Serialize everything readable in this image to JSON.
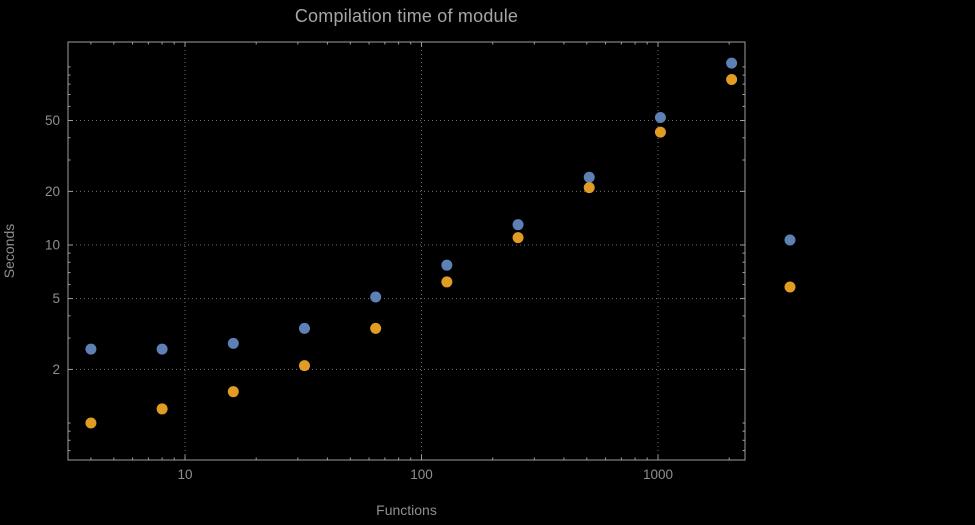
{
  "chart": {
    "title": "Compilation time of module",
    "xlabel": "Functions",
    "ylabel": "Seconds"
  },
  "chart_data": {
    "type": "scatter",
    "title": "Compilation time of module",
    "xlabel": "Functions",
    "ylabel": "Seconds",
    "x_scale": "log",
    "y_scale": "log",
    "grid": true,
    "x": [
      4,
      8,
      16,
      32,
      64,
      128,
      256,
      512,
      1024,
      2048
    ],
    "series": [
      {
        "name": "series-blue",
        "color": "#5e81b5",
        "values": [
          2.6,
          2.6,
          2.8,
          3.4,
          5.1,
          7.7,
          13,
          24,
          52,
          105
        ]
      },
      {
        "name": "series-orange",
        "color": "#e19c24",
        "values": [
          1.0,
          1.2,
          1.5,
          2.1,
          3.4,
          6.2,
          11,
          21,
          43,
          85
        ]
      }
    ],
    "x_ticks": [
      10,
      100,
      1000
    ],
    "y_ticks": [
      2,
      5,
      10,
      20,
      50
    ],
    "xlim": [
      3.2,
      2333
    ],
    "ylim": [
      0.62,
      138
    ],
    "legend_position": "right-outside"
  },
  "style": {
    "background_color": "#000000",
    "frame_color": "#9e9e9e",
    "grid_color": "#6f6f6f",
    "tick_label_color": "#8f8f8f",
    "title_color": "#a6a6a6",
    "point_blue": "#5e81b5",
    "point_orange": "#e19c24"
  }
}
